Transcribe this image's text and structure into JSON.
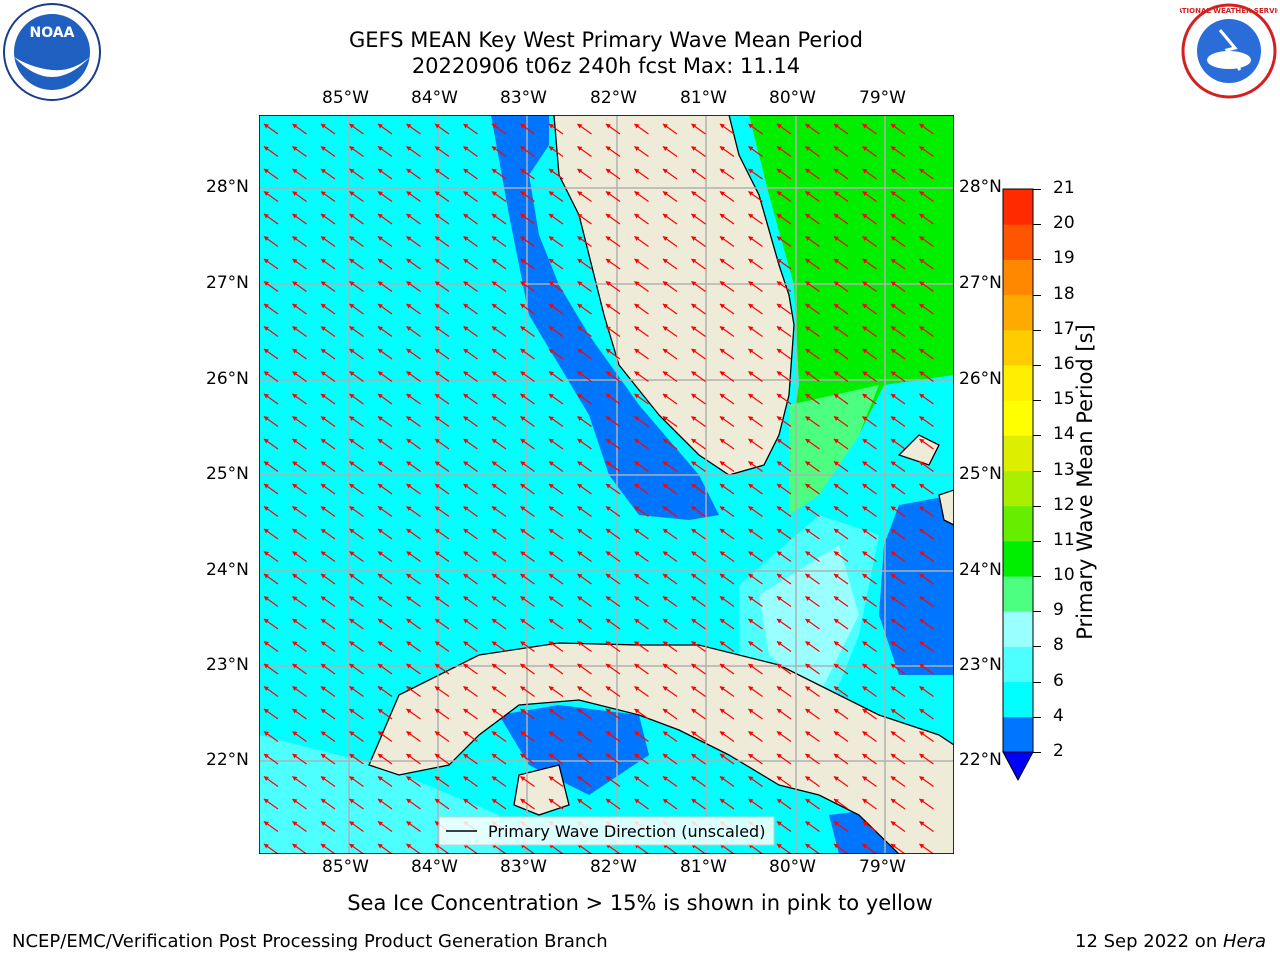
{
  "title_line1": "GEFS MEAN Key West Primary Wave Mean Period",
  "title_line2": "20220906 t06z 240h fcst   Max: 11.14",
  "map": {
    "lon_labels": [
      "85°W",
      "84°W",
      "83°W",
      "82°W",
      "81°W",
      "80°W",
      "79°W"
    ],
    "lat_labels": [
      "28°N",
      "27°N",
      "26°N",
      "25°N",
      "24°N",
      "23°N",
      "22°N"
    ],
    "legend_label": "Primary Wave Direction (unscaled)",
    "colors": {
      "land": "#eeecd9",
      "ocean_low": "#1e7df0",
      "ocean_mid": "#00ffff",
      "ocean_high": "#00ee00",
      "arrow": "#ff0000"
    }
  },
  "colorbar": {
    "label": "Primary Wave Mean Period [s]",
    "ticks": [
      "2",
      "4",
      "6",
      "8",
      "9",
      "10",
      "11",
      "12",
      "13",
      "14",
      "15",
      "16",
      "17",
      "18",
      "19",
      "20",
      "21"
    ],
    "colors": [
      "#0075ff",
      "#00ffff",
      "#4dffff",
      "#99ffff",
      "#4dff80",
      "#00ee00",
      "#66ee00",
      "#aaee00",
      "#ddee00",
      "#ffff00",
      "#ffee00",
      "#ffcc00",
      "#ffaa00",
      "#ff8800",
      "#ff5500",
      "#ff2a00",
      "#ff0000"
    ]
  },
  "note": "Sea Ice Concentration > 15% is shown in pink to yellow",
  "footer_left": "NCEP/EMC/Verification Post Processing Product Generation Branch",
  "footer_right_date": "12 Sep 2022 on ",
  "footer_right_machine": "Hera",
  "logos": {
    "left": "NOAA",
    "right": "NATIONAL WEATHER SERVICE"
  }
}
